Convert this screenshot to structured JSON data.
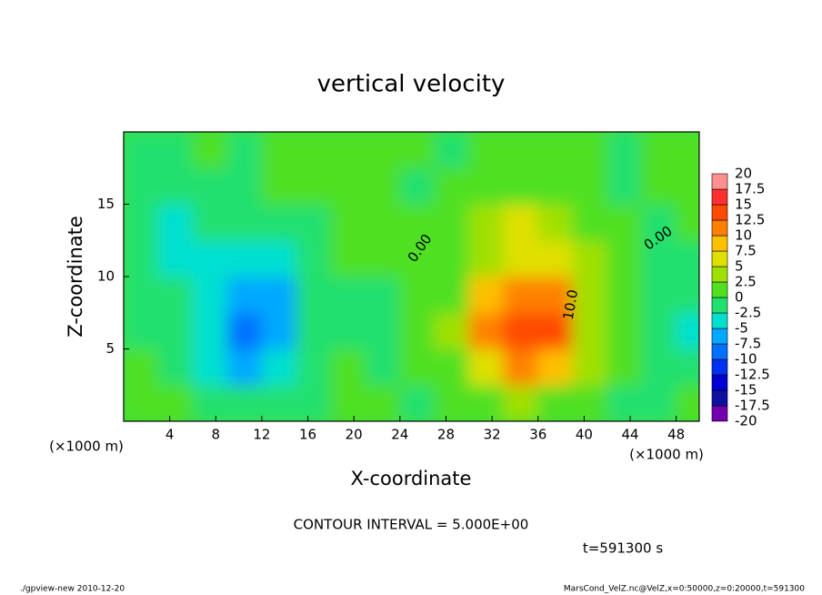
{
  "chart_data": {
    "type": "contourf",
    "title": "vertical velocity",
    "xlabel": "X-coordinate",
    "ylabel": "Z-coordinate",
    "x_units": "(×1000 m)",
    "y_units": "(×1000 m)",
    "xlim": [
      0,
      50
    ],
    "ylim": [
      0,
      20
    ],
    "xticks": [
      4,
      8,
      12,
      16,
      20,
      24,
      28,
      32,
      36,
      40,
      44,
      48
    ],
    "yticks": [
      5,
      10,
      15
    ],
    "x": [
      1.5,
      4.5,
      7.5,
      10.5,
      13.5,
      16.5,
      19.5,
      22.5,
      25.5,
      28.5,
      31.5,
      34.5,
      37.5,
      40.5,
      43.5,
      46.5,
      49.5
    ],
    "y": [
      1.25,
      3.75,
      6.25,
      8.75,
      11.25,
      13.75,
      16.25,
      18.75
    ],
    "values": [
      [
        1,
        0,
        -1,
        -2,
        -2,
        -1,
        1,
        0,
        -1,
        1,
        2,
        3,
        2,
        0,
        -1,
        -1,
        0
      ],
      [
        0,
        -1,
        -3,
        -6,
        -5,
        -2,
        0,
        -1,
        0,
        2,
        6,
        10,
        9,
        3,
        0,
        -1,
        -1
      ],
      [
        -1,
        -2,
        -4,
        -8,
        -7,
        -2,
        -1,
        -1,
        0,
        3,
        10,
        14,
        13,
        4,
        0,
        -2,
        -3
      ],
      [
        -1,
        -2,
        -4,
        -7,
        -6,
        -2,
        -1,
        -1,
        0,
        2,
        8,
        12,
        10,
        4,
        0,
        -1,
        -1
      ],
      [
        -1,
        -3,
        -3,
        -5,
        -4,
        -1,
        0,
        0,
        0,
        1,
        4,
        6,
        6,
        3,
        0,
        -1,
        -1
      ],
      [
        -2,
        -3,
        -2,
        -2,
        -2,
        -1,
        0,
        0,
        0,
        1,
        3,
        5,
        4,
        2,
        0,
        -1,
        0
      ],
      [
        -1,
        -1,
        -1,
        -1,
        0,
        0,
        1,
        0,
        -1,
        0,
        1,
        2,
        1,
        0,
        -1,
        0,
        0
      ],
      [
        -1,
        -1,
        0,
        -1,
        0,
        0,
        1,
        0,
        0,
        -1,
        0,
        1,
        0,
        0,
        -1,
        0,
        0
      ]
    ],
    "levels": [
      -20,
      -17.5,
      -15,
      -12.5,
      -10,
      -7.5,
      -5,
      -2.5,
      0,
      2.5,
      5,
      7.5,
      10,
      12.5,
      15,
      17.5,
      20
    ],
    "colors": [
      "#7000b0",
      "#1010a0",
      "#0000d0",
      "#0030f0",
      "#0070ff",
      "#00a8ff",
      "#00e0d0",
      "#20e070",
      "#50e020",
      "#a0e000",
      "#e0e000",
      "#ffc000",
      "#ff8000",
      "#ff4a00",
      "#ff3030",
      "#ff9090"
    ],
    "contour_labels": [
      "0.00",
      "0.00",
      "10.0"
    ],
    "contour_interval": "CONTOUR INTERVAL = 5.000E+00",
    "time": "t=591300 s",
    "footer_left": "./gpview-new  2010-12-20",
    "footer_right": "MarsCond_VelZ.nc@VelZ,x=0:50000,z=0:20000,t=591300"
  }
}
